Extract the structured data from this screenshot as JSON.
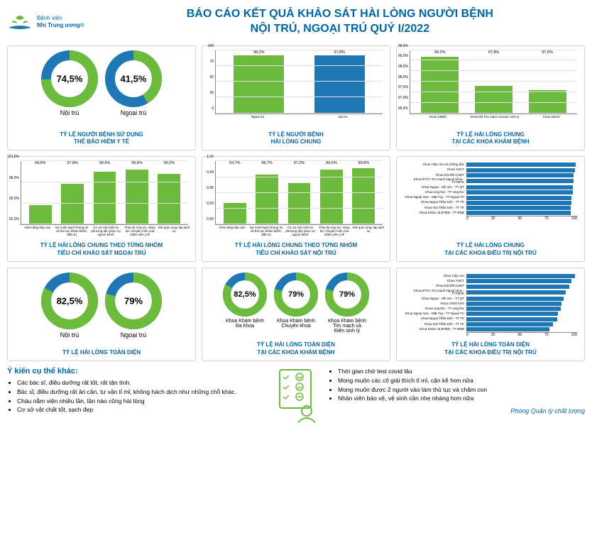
{
  "header": {
    "logo_line1": "Bệnh viện",
    "logo_line2": "Nhi Trung ương",
    "title_line1": "BÁO CÁO KẾT QUẢ KHẢO SÁT HÀI LÒNG  NGƯỜI BỆNH",
    "title_line2": "NỘI TRÚ, NGOẠI TRÚ QUÝ I/2022"
  },
  "colors": {
    "green": "#6cbb3c",
    "blue": "#1f77b4",
    "title": "#0066a4",
    "grid": "#e0e0e0"
  },
  "c1": {
    "title": "TỶ LỆ NGƯỜI BỆNH SỬ DỤNG\nTHẺ BẢO HIỂM Y TẾ",
    "donuts": [
      {
        "pct": 74.5,
        "txt": "74,5%",
        "label": "Nội trú"
      },
      {
        "pct": 41.5,
        "txt": "41,5%",
        "label": "Ngoại trú"
      }
    ]
  },
  "c2": {
    "title": "TỶ LỆ NGƯỜI BỆNH\nHÀI LÒNG CHUNG",
    "ylim": [
      0,
      100
    ],
    "yticks": [
      0,
      25,
      50,
      75,
      100
    ],
    "bars": [
      {
        "label": "Ngoại trú",
        "value": 98.2,
        "txt": "98,2%",
        "color": "#6cbb3c"
      },
      {
        "label": "Nội trú",
        "value": 97.8,
        "txt": "97,8%",
        "color": "#1f77b4"
      }
    ]
  },
  "c3": {
    "title": "TỶ LỆ HÀI LÒNG CHUNG\nTẠI CÁC KHOA KHÁM BỆNH",
    "ylim": [
      96.5,
      99.5
    ],
    "yticks": [
      "96,5%",
      "97,0%",
      "97,5%",
      "98,0%",
      "98,5%",
      "99,0%",
      "99,5%"
    ],
    "bars": [
      {
        "label": "Khoa KBĐK",
        "value": 99.2,
        "txt": "99,2%"
      },
      {
        "label": "Khoa KB Tim mạch và Điện sinh lý",
        "value": 97.8,
        "txt": "97,8%"
      },
      {
        "label": "Khoa KBCK",
        "value": 97.6,
        "txt": "97,6%"
      }
    ]
  },
  "c4": {
    "title": "TỶ LỆ HÀI LÒNG CHUNG THEO TỪNG NHÓM\nTIÊU CHÍ KHẢO SÁT NGOẠI TRÚ",
    "ylim": [
      92.0,
      101.0
    ],
    "yticks": [
      "92,0%",
      "95,0%",
      "98,0%",
      "101,0%"
    ],
    "bars": [
      {
        "label": "Khả năng tiếp cận",
        "value": 94.8,
        "txt": "94,8%"
      },
      {
        "label": "Sự minh bạch thông tin và thủ tục khám bệnh, điều trị",
        "value": 97.8,
        "txt": "97,8%"
      },
      {
        "label": "Cơ sở vật chất và phương tiện phục vụ người bệnh",
        "value": 99.5,
        "txt": "99,5%"
      },
      {
        "label": "Thái độ ứng xử, năng lực chuyên môn của nhân viên y tế",
        "value": 99.8,
        "txt": "99,8%"
      },
      {
        "label": "Kết quả cung cấp dịch vụ",
        "value": 99.2,
        "txt": "99,2%"
      }
    ]
  },
  "c5": {
    "title": "TỶ LỆ HÀI LÒNG CHUNG THEO TỪNG NHÓM\nTIÊU CHÍ KHẢO SÁT NỘI TRÚ",
    "ylim": [
      0.9,
      1.01
    ],
    "yticks": [
      "0,90",
      "0,93",
      "0,96",
      "0,99",
      "1,01"
    ],
    "bars": [
      {
        "label": "Khả năng tiếp cận",
        "value": 0.937,
        "txt": "93,7%"
      },
      {
        "label": "Sự minh bạch thông tin và thủ tục khám bệnh, điều trị",
        "value": 0.987,
        "txt": "98,7%"
      },
      {
        "label": "Cơ sở vật chất và phương tiện phục vụ người bệnh",
        "value": 0.972,
        "txt": "97,2%"
      },
      {
        "label": "Thái độ ứng xử, năng lực chuyên môn của nhân viên y tế",
        "value": 0.996,
        "txt": "99,6%"
      },
      {
        "label": "Kết quả cung cấp dịch vụ",
        "value": 0.998,
        "txt": "99,8%"
      }
    ]
  },
  "c6": {
    "title": "TỶ LỆ HÀI LÒNG CHUNG\nTẠI CÁC KHOA ĐIỀU TRỊ NỘI TRÚ",
    "xlim": [
      0,
      100
    ],
    "xticks": [
      0,
      25,
      50,
      75,
      100
    ],
    "bars": [
      {
        "label": "Khoa Cấp cứu và Chống độc",
        "value": 99
      },
      {
        "label": "Khoa YHCT",
        "value": 98
      },
      {
        "label": "Khoa Nội tiết-CHDT",
        "value": 97
      },
      {
        "label": "Khoa ĐTTC Tim mạch Ngoại khoa - TTTMTE",
        "value": 97
      },
      {
        "label": "Khoa Ngoại - Hồi sức - TT QT",
        "value": 96
      },
      {
        "label": "Khoa Ung thư - TT Ung thư",
        "value": 96
      },
      {
        "label": "Khoa Ngoại Gan - Mật-Tụy - TT Ngoại TH",
        "value": 95
      },
      {
        "label": "Khoa Ngoại Thần kinh - TT TK",
        "value": 95
      },
      {
        "label": "Khoa Nội Thần kinh - TT TK",
        "value": 94
      },
      {
        "label": "Khoa Khám và ĐTBN - TT BNĐ",
        "value": 94
      }
    ]
  },
  "c7": {
    "title": "TỶ LỆ HÀI LÒNG TOÀN DIỆN",
    "donuts": [
      {
        "pct": 82.5,
        "txt": "82,5%",
        "label": "Nội trú"
      },
      {
        "pct": 79.0,
        "txt": "79%",
        "label": "Ngoại trú"
      }
    ]
  },
  "c8": {
    "title": "TỶ LỆ HÀI LÒNG TOÀN DIỆN\nTẠI CÁC KHOA KHÁM BỆNH",
    "donuts": [
      {
        "pct": 82.5,
        "txt": "82,5%",
        "label": "Khoa Khám bệnh\nĐa khoa"
      },
      {
        "pct": 79.0,
        "txt": "79%",
        "label": "Khoa Khám bệnh\nChuyên khoa"
      },
      {
        "pct": 79.0,
        "txt": "79%",
        "label": "Khoa Khám bệnh\nTim mạch và\nĐiện sinh lý"
      }
    ]
  },
  "c9": {
    "title": "TỶ LỆ HÀI LÒNG TOÀN DIỆN\nTẠI CÁC KHOA ĐIỀU TRỊ NỘI TRÚ",
    "xlim": [
      0,
      100
    ],
    "xticks": [
      0,
      25,
      50,
      75,
      100
    ],
    "bars": [
      {
        "label": "Khoa Cấp cứu",
        "value": 98
      },
      {
        "label": "Khoa YHCT",
        "value": 95
      },
      {
        "label": "Khoa Nội tiết-CHDT",
        "value": 93
      },
      {
        "label": "Khoa ĐTTC Tim mạch Ngoại khoa - TTTMTE",
        "value": 90
      },
      {
        "label": "Khoa Ngoại - Hồi sức - TT QT",
        "value": 88
      },
      {
        "label": "Khoa Chỉnh hình",
        "value": 86
      },
      {
        "label": "Khoa Ung thư - TT Ung thư",
        "value": 85
      },
      {
        "label": "Khoa Ngoại Gan - Mật-Tụy - TT Ngoại TH",
        "value": 83
      },
      {
        "label": "Khoa Ngoại Thần kinh - TT TK",
        "value": 82
      },
      {
        "label": "Khoa Nội Thần kinh - TT TK",
        "value": 78
      },
      {
        "label": "Khoa Khám và ĐTBN - TT BNĐ",
        "value": 75
      }
    ]
  },
  "footer": {
    "left_title": "Ý kiến cụ thể khác:",
    "left_items": [
      "Các bác sĩ, điều dưỡng rất tốt, rất tận tình.",
      "Bác sĩ, điều dưỡng rất ân cần, tư vấn tỉ mỉ, không hách dịch như những chỗ khác.",
      "Cháu nằm viện nhiều lần, lần nào cũng hài lòng",
      "Cơ sở vật chất tốt, sạch đẹp"
    ],
    "right_items": [
      "Thời gian chờ test covid lâu",
      "Mong muốn các cô giải thích tỉ mỉ, cặn kẽ hơn nữa",
      "Mong muốn được 2 người vào làm thủ tục và chăm con",
      "Nhân viên bảo vệ, vệ sinh cần nhẹ nhàng hơn nữa"
    ],
    "signature": "Phòng Quản lý chất lượng"
  }
}
